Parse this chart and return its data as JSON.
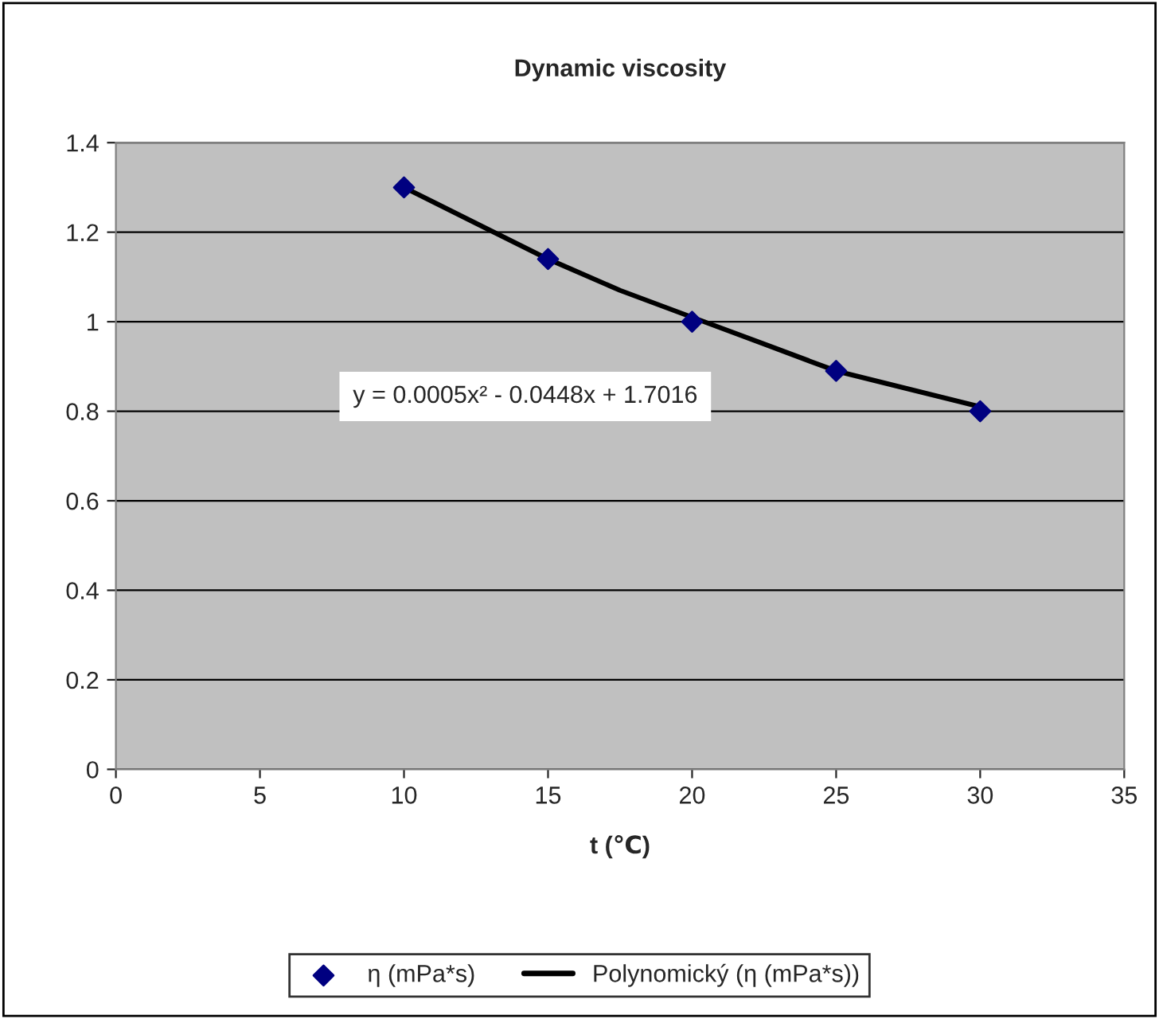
{
  "chart_data": {
    "type": "scatter",
    "title": "Dynamic viscosity",
    "xlabel": "t (℃)",
    "series": [
      {
        "name": "η (mPa*s)",
        "color": "#000080",
        "marker": "diamond",
        "x": [
          10,
          15,
          20,
          25,
          30
        ],
        "values": [
          1.3,
          1.14,
          1.0,
          0.89,
          0.8
        ]
      },
      {
        "name": "Polynomický (η (mPa*s))",
        "type": "line",
        "color": "#000000",
        "marker": "none",
        "line_style": "solid",
        "x": [
          10,
          12.5,
          15,
          17.5,
          20,
          22.5,
          25,
          27.5,
          30
        ],
        "values": [
          1.3,
          1.22,
          1.14,
          1.07,
          1.01,
          0.95,
          0.89,
          0.85,
          0.81
        ]
      }
    ],
    "annotations": [
      "y = 0.0005x² - 0.0448x + 1.7016"
    ],
    "xlim": [
      0,
      35
    ],
    "xticks": [
      0,
      5,
      10,
      15,
      20,
      25,
      30,
      35
    ],
    "ylim": [
      0,
      1.4
    ],
    "yticks": [
      0,
      0.2,
      0.4,
      0.6,
      0.8,
      1,
      1.2,
      1.4
    ],
    "grid": "y",
    "legend": "bottom"
  }
}
